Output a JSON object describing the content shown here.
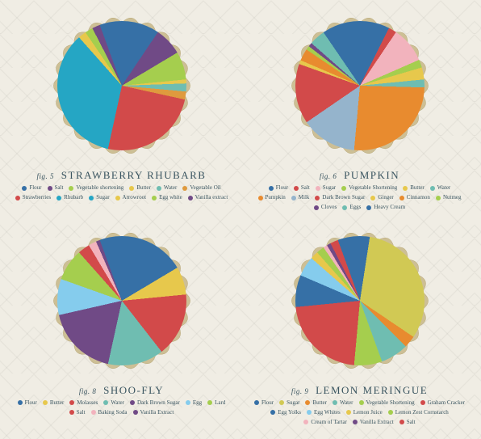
{
  "background_color": "#f0ede4",
  "crust_color": "#cdbf95",
  "crust_shadow": "#b8a878",
  "label_color": "#3a5560",
  "title_fontsize": 13,
  "fig_fontsize": 9,
  "legend_fontsize": 7,
  "pies": [
    {
      "fig": "fig. 5",
      "title": "STRAWBERRY RHUBARB",
      "slices": [
        {
          "label": "Flour",
          "color": "#3670a6",
          "value": 15
        },
        {
          "label": "Salt",
          "color": "#704a86",
          "value": 7
        },
        {
          "label": "Vegetable shortening",
          "color": "#a5ce4e",
          "value": 7
        },
        {
          "label": "Butter",
          "color": "#e7c84c",
          "value": 1
        },
        {
          "label": "Water",
          "color": "#6fbdb1",
          "value": 2
        },
        {
          "label": "Vegetable Oil",
          "color": "#df9a3e",
          "value": 2
        },
        {
          "label": "Strawberries",
          "color": "#d24a4a",
          "value": 25
        },
        {
          "label": "Rhubarb",
          "color": "#25a6c4",
          "value": 30
        },
        {
          "label": "Sugar",
          "color": "#25a6c4",
          "value": 5
        },
        {
          "label": "Arrowroot",
          "color": "#e7c84c",
          "value": 2
        },
        {
          "label": "Egg white",
          "color": "#a5ce4e",
          "value": 2
        },
        {
          "label": "Vanilla extract",
          "color": "#704a86",
          "value": 2
        }
      ]
    },
    {
      "fig": "fig. 6",
      "title": "PUMPKIN",
      "slices": [
        {
          "label": "Flour",
          "color": "#3670a6",
          "value": 13
        },
        {
          "label": "Salt",
          "color": "#d24a4a",
          "value": 2
        },
        {
          "label": "Sugar",
          "color": "#f2b3bd",
          "value": 9
        },
        {
          "label": "Vegetable Shortening",
          "color": "#a5ce4e",
          "value": 2
        },
        {
          "label": "Butter",
          "color": "#e7c84c",
          "value": 3
        },
        {
          "label": "Water",
          "color": "#6fbdb1",
          "value": 2
        },
        {
          "label": "Pumpkin",
          "color": "#e88b2f",
          "value": 26
        },
        {
          "label": "Milk",
          "color": "#95b4cc",
          "value": 14
        },
        {
          "label": "Dark Brown Sugar",
          "color": "#d24a4a",
          "value": 15
        },
        {
          "label": "Ginger",
          "color": "#e7c84c",
          "value": 1
        },
        {
          "label": "Cinnamon",
          "color": "#e88b2f",
          "value": 3
        },
        {
          "label": "Nutmeg",
          "color": "#a5ce4e",
          "value": 1
        },
        {
          "label": "Cloves",
          "color": "#704a86",
          "value": 1
        },
        {
          "label": "Eggs",
          "color": "#6fbdb1",
          "value": 4
        },
        {
          "label": "Heavy Cream",
          "color": "#3670a6",
          "value": 4
        }
      ]
    },
    {
      "fig": "fig. 8",
      "title": "SHOO-FLY",
      "slices": [
        {
          "label": "Flour",
          "color": "#3670a6",
          "value": 22
        },
        {
          "label": "Butter",
          "color": "#e7c84c",
          "value": 7
        },
        {
          "label": "Molasses",
          "color": "#d24a4a",
          "value": 16
        },
        {
          "label": "Water",
          "color": "#6fbdb1",
          "value": 14
        },
        {
          "label": "Dark Brown Sugar",
          "color": "#704a86",
          "value": 18
        },
        {
          "label": "Egg",
          "color": "#85cced",
          "value": 9
        },
        {
          "label": "Lard",
          "color": "#a5ce4e",
          "value": 8
        },
        {
          "label": "Salt",
          "color": "#d24a4a",
          "value": 3
        },
        {
          "label": "Baking Soda",
          "color": "#f2b3bd",
          "value": 2
        },
        {
          "label": "Vanilla Extract",
          "color": "#704a86",
          "value": 1
        }
      ]
    },
    {
      "fig": "fig. 9",
      "title": "LEMON MERINGUE",
      "slices": [
        {
          "label": "Flour",
          "color": "#3670a6",
          "value": 8
        },
        {
          "label": "Sugar",
          "color": "#d1c954",
          "value": 32
        },
        {
          "label": "Butter",
          "color": "#e88b2f",
          "value": 3
        },
        {
          "label": "Water",
          "color": "#6fbdb1",
          "value": 7
        },
        {
          "label": "Vegetable Shortening",
          "color": "#a5ce4e",
          "value": 7
        },
        {
          "label": "Graham Cracker",
          "color": "#d24a4a",
          "value": 22
        },
        {
          "label": "Egg Yolks",
          "color": "#3670a6",
          "value": 8
        },
        {
          "label": "Egg Whites",
          "color": "#85cced",
          "value": 5
        },
        {
          "label": "Lemon Juice",
          "color": "#e7c84c",
          "value": 2
        },
        {
          "label": "Lemon Zest Cornstarch",
          "color": "#a5ce4e",
          "value": 2
        },
        {
          "label": "Cream of Tartar",
          "color": "#f2b3bd",
          "value": 1
        },
        {
          "label": "Vanilla Extract",
          "color": "#704a86",
          "value": 1
        },
        {
          "label": "Salt",
          "color": "#d24a4a",
          "value": 2
        }
      ]
    }
  ]
}
